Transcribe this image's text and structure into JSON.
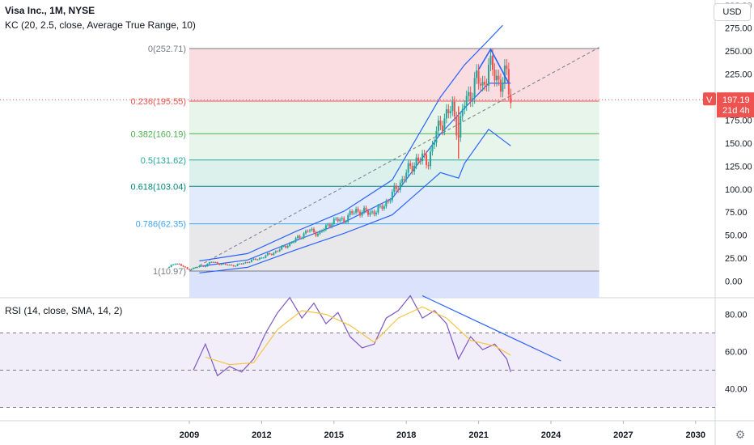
{
  "header": {
    "symbol_line": "Visa Inc., 1M, NYSE",
    "indicator_line": "KC (20, 2.5, close, Average True Range, 10)",
    "rsi_line": "RSI (14, close, SMA, 14, 2)",
    "currency": "USD"
  },
  "colors": {
    "up": "#26a69a",
    "down": "#ef5350",
    "kc": "#2962ff",
    "rsi": "#7e57c2",
    "rsi_ma": "#f5c542",
    "trendline": "#2962ff"
  },
  "icons": {
    "settings": "gear-icon"
  },
  "chart_data": [
    {
      "type": "candlestick",
      "title": "Visa Inc., 1M, NYSE",
      "xlabel": "",
      "ylabel": "",
      "x_ticks": [
        "2009",
        "2012",
        "2015",
        "2018",
        "2021",
        "2024",
        "2027",
        "2030"
      ],
      "y_ticks": [
        0,
        25,
        50,
        75,
        100,
        125,
        150,
        175,
        200,
        225,
        250,
        275
      ],
      "ylim": [
        -18,
        300
      ],
      "last_price": {
        "symbol": "V",
        "value": "197.19",
        "countdown": "21d 4h"
      },
      "series": [
        {
          "name": "Visa Inc.",
          "type": "ohlc-approx",
          "points": [
            [
              "2008-03",
              15
            ],
            [
              "2008-06",
              20
            ],
            [
              "2008-09",
              17
            ],
            [
              "2008-12",
              13
            ],
            [
              "2009-03",
              14
            ],
            [
              "2009-06",
              16
            ],
            [
              "2009-09",
              17
            ],
            [
              "2009-12",
              21
            ],
            [
              "2010-06",
              18
            ],
            [
              "2010-12",
              17
            ],
            [
              "2011-06",
              21
            ],
            [
              "2011-12",
              25
            ],
            [
              "2012-06",
              30
            ],
            [
              "2012-12",
              37
            ],
            [
              "2013-06",
              45
            ],
            [
              "2013-12",
              55
            ],
            [
              "2014-06",
              52
            ],
            [
              "2014-12",
              65
            ],
            [
              "2015-06",
              67
            ],
            [
              "2015-12",
              77
            ],
            [
              "2016-06",
              74
            ],
            [
              "2016-12",
              78
            ],
            [
              "2017-06",
              94
            ],
            [
              "2017-12",
              114
            ],
            [
              "2018-06",
              132
            ],
            [
              "2018-12",
              132
            ],
            [
              "2019-06",
              173
            ],
            [
              "2019-12",
              187
            ],
            [
              "2020-03",
              161
            ],
            [
              "2020-06",
              193
            ],
            [
              "2020-12",
              218
            ],
            [
              "2021-03",
              212
            ],
            [
              "2021-06",
              233
            ],
            [
              "2021-09",
              224
            ],
            [
              "2021-12",
              217
            ],
            [
              "2022-03",
              222
            ],
            [
              "2022-05",
              197.19
            ]
          ]
        },
        {
          "name": "KC upper",
          "points": [
            [
              "2009-06",
              22
            ],
            [
              "2011-06",
              30
            ],
            [
              "2013-06",
              54
            ],
            [
              "2015-06",
              76
            ],
            [
              "2017-06",
              110
            ],
            [
              "2019-06",
              200
            ],
            [
              "2020-06",
              235
            ],
            [
              "2021-06",
              262
            ],
            [
              "2022-01",
              278
            ]
          ]
        },
        {
          "name": "KC middle",
          "points": [
            [
              "2009-06",
              16
            ],
            [
              "2011-06",
              23
            ],
            [
              "2013-06",
              44
            ],
            [
              "2015-06",
              64
            ],
            [
              "2017-06",
              90
            ],
            [
              "2019-06",
              160
            ],
            [
              "2020-06",
              188
            ],
            [
              "2021-06",
              215
            ],
            [
              "2022-05",
              215
            ]
          ]
        },
        {
          "name": "KC lower",
          "points": [
            [
              "2009-06",
              9
            ],
            [
              "2011-06",
              15
            ],
            [
              "2013-06",
              34
            ],
            [
              "2015-06",
              52
            ],
            [
              "2017-06",
              72
            ],
            [
              "2019-06",
              118
            ],
            [
              "2020-03",
              112
            ],
            [
              "2020-06",
              128
            ],
            [
              "2021-06",
              165
            ],
            [
              "2022-05",
              147
            ]
          ]
        }
      ],
      "fibonacci": {
        "levels": [
          {
            "ratio": "0",
            "price": "252.71",
            "label": "0(252.71)",
            "value": 252.71,
            "color": "#787b86",
            "fill": "#f8d7da"
          },
          {
            "ratio": "0.236",
            "price": "195.55",
            "label": "0.236(195.55)",
            "value": 195.55,
            "color": "#ef5350",
            "fill": "#e3f3e6"
          },
          {
            "ratio": "0.382",
            "price": "160.19",
            "label": "0.382(160.19)",
            "value": 160.19,
            "color": "#4caf50",
            "fill": "#e3f3e6"
          },
          {
            "ratio": "0.5",
            "price": "131.62",
            "label": "0.5(131.62)",
            "value": 131.62,
            "color": "#26a69a",
            "fill": "#d6efe9"
          },
          {
            "ratio": "0.618",
            "price": "103.04",
            "label": "0.618(103.04)",
            "value": 103.04,
            "color": "#00897b",
            "fill": "#dde8fb"
          },
          {
            "ratio": "0.786",
            "price": "62.35",
            "label": "0.786(62.35)",
            "value": 62.35,
            "color": "#42a5f5",
            "fill": "#e4e4e6"
          },
          {
            "ratio": "1",
            "price": "10.97",
            "label": "1(10.97)",
            "value": 10.97,
            "color": "#787b86",
            "fill": "#d3defa"
          }
        ],
        "start": "2009-01",
        "end": "2026-01"
      }
    },
    {
      "type": "line",
      "title": "RSI (14, close, SMA, 14, 2)",
      "y_ticks": [
        40,
        60,
        80
      ],
      "ylim": [
        23,
        93
      ],
      "bands": [
        30,
        50,
        70
      ],
      "series": [
        {
          "name": "RSI",
          "points": [
            [
              "2009-03",
              50
            ],
            [
              "2009-09",
              64
            ],
            [
              "2010-03",
              47
            ],
            [
              "2010-09",
              52
            ],
            [
              "2011-03",
              49
            ],
            [
              "2011-09",
              56
            ],
            [
              "2012-03",
              70
            ],
            [
              "2012-09",
              81
            ],
            [
              "2013-03",
              89
            ],
            [
              "2013-09",
              78
            ],
            [
              "2014-03",
              86
            ],
            [
              "2014-09",
              75
            ],
            [
              "2015-03",
              81
            ],
            [
              "2015-09",
              68
            ],
            [
              "2016-03",
              62
            ],
            [
              "2016-09",
              64
            ],
            [
              "2017-03",
              78
            ],
            [
              "2017-09",
              82
            ],
            [
              "2018-03",
              90
            ],
            [
              "2018-09",
              78
            ],
            [
              "2019-03",
              82
            ],
            [
              "2019-09",
              75
            ],
            [
              "2020-03",
              56
            ],
            [
              "2020-09",
              68
            ],
            [
              "2021-03",
              61
            ],
            [
              "2021-09",
              64
            ],
            [
              "2022-03",
              56
            ],
            [
              "2022-05",
              49
            ]
          ]
        },
        {
          "name": "RSI-based MA",
          "points": [
            [
              "2009-09",
              57
            ],
            [
              "2010-09",
              53
            ],
            [
              "2011-09",
              54
            ],
            [
              "2012-09",
              72
            ],
            [
              "2013-09",
              82
            ],
            [
              "2014-09",
              80
            ],
            [
              "2015-09",
              74
            ],
            [
              "2016-09",
              65
            ],
            [
              "2017-09",
              78
            ],
            [
              "2018-09",
              84
            ],
            [
              "2019-09",
              78
            ],
            [
              "2020-09",
              66
            ],
            [
              "2021-09",
              63
            ],
            [
              "2022-05",
              58
            ]
          ]
        }
      ]
    }
  ]
}
